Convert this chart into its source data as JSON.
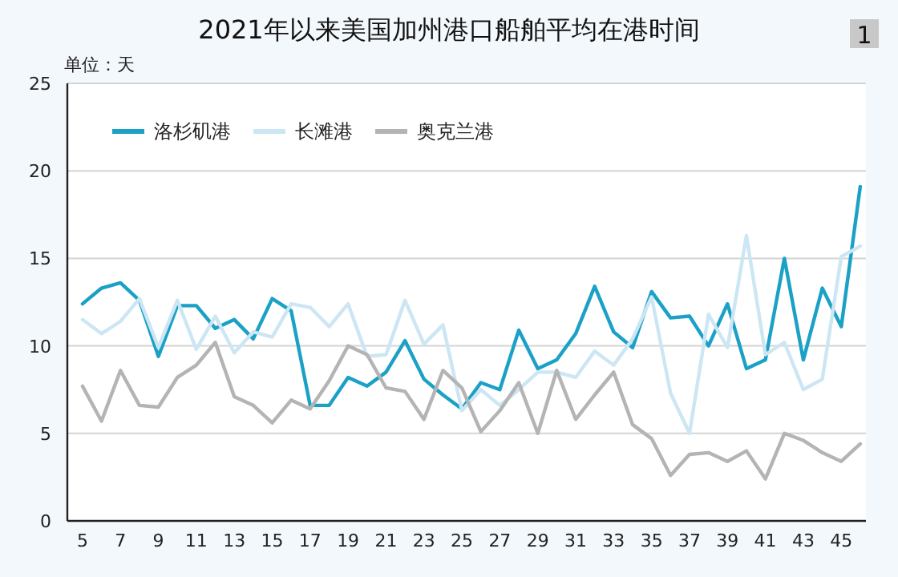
{
  "chart_data": {
    "type": "line",
    "title": "2021年以来美国加州港口船舶平均在港时间",
    "ylabel": "单位：天",
    "annotations": [
      "1"
    ],
    "x": [
      5,
      6,
      7,
      8,
      9,
      10,
      11,
      12,
      13,
      14,
      15,
      16,
      17,
      18,
      19,
      20,
      21,
      22,
      23,
      24,
      25,
      26,
      27,
      28,
      29,
      30,
      31,
      32,
      33,
      34,
      35,
      36,
      37,
      38,
      39,
      40,
      41,
      42,
      43,
      44,
      45,
      46
    ],
    "series": [
      {
        "name": "洛杉矶港",
        "color": "#1ba1c6",
        "values": [
          12.4,
          13.3,
          13.6,
          12.6,
          9.4,
          12.3,
          12.3,
          11.0,
          11.5,
          10.4,
          12.7,
          12.0,
          6.6,
          6.6,
          8.2,
          7.7,
          8.5,
          10.3,
          8.1,
          7.2,
          6.4,
          7.9,
          7.5,
          10.9,
          8.7,
          9.2,
          10.7,
          13.4,
          10.8,
          9.9,
          13.1,
          11.6,
          11.7,
          10.0,
          12.4,
          8.7,
          9.2,
          15.0,
          9.2,
          13.3,
          11.1,
          19.1
        ]
      },
      {
        "name": "长滩港",
        "color": "#cce6f3",
        "values": [
          11.5,
          10.7,
          11.4,
          12.7,
          9.9,
          12.6,
          9.8,
          11.7,
          9.6,
          10.8,
          10.5,
          12.4,
          12.2,
          11.1,
          12.4,
          9.4,
          9.5,
          12.6,
          10.1,
          11.2,
          6.3,
          7.5,
          6.6,
          7.5,
          8.5,
          8.5,
          8.2,
          9.7,
          8.9,
          10.4,
          12.8,
          7.3,
          5.0,
          11.8,
          9.9,
          16.3,
          9.5,
          10.2,
          7.5,
          8.1,
          15.1,
          15.7
        ]
      },
      {
        "name": "奥克兰港",
        "color": "#b4b4b4",
        "values": [
          7.7,
          5.7,
          8.6,
          6.6,
          6.5,
          8.2,
          8.9,
          10.2,
          7.1,
          6.6,
          5.6,
          6.9,
          6.4,
          8.0,
          10.0,
          9.5,
          7.6,
          7.4,
          5.8,
          8.6,
          7.6,
          5.1,
          6.3,
          7.9,
          5.0,
          8.6,
          5.8,
          7.2,
          8.5,
          5.5,
          4.7,
          2.6,
          3.8,
          3.9,
          3.4,
          4.0,
          2.4,
          5.0,
          4.6,
          3.9,
          3.4,
          4.4
        ]
      }
    ],
    "xlim": [
      4.2,
      46.3
    ],
    "xticks": [
      5,
      7,
      9,
      11,
      13,
      15,
      17,
      19,
      21,
      23,
      25,
      27,
      29,
      31,
      33,
      35,
      37,
      39,
      41,
      43,
      45
    ],
    "ylim": [
      0,
      25
    ],
    "yticks": [
      0,
      5,
      10,
      15,
      20,
      25
    ],
    "grid": "y",
    "legend": "top left",
    "marker": "none",
    "line_style": "solid"
  }
}
